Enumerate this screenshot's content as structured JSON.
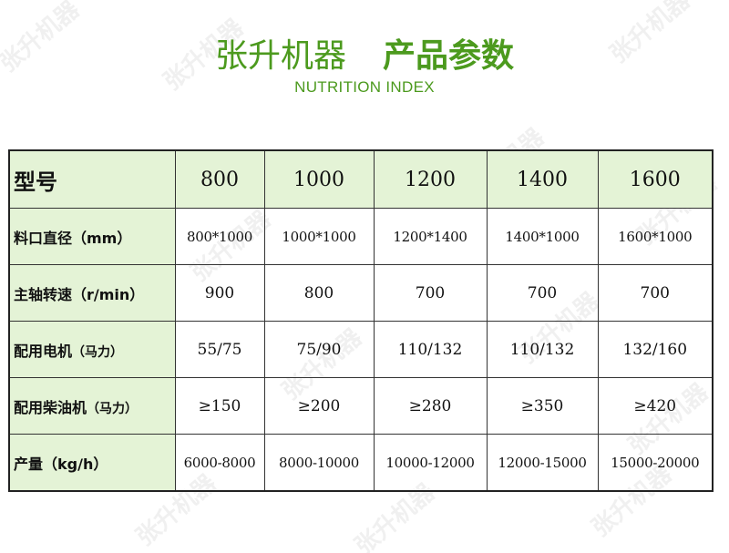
{
  "header": {
    "title_brand": "张升机器",
    "title_section": "产品参数",
    "subtitle": "NUTRITION INDEX"
  },
  "watermark": {
    "text": "张升机器"
  },
  "table": {
    "header_label": "型号",
    "models": [
      "800",
      "1000",
      "1200",
      "1400",
      "1600"
    ],
    "rows": [
      {
        "label": "料口直径（mm）",
        "values": [
          "800*1000",
          "1000*1000",
          "1200*1400",
          "1400*1000",
          "1600*1000"
        ]
      },
      {
        "label": "主轴转速（r/min）",
        "values": [
          "900",
          "800",
          "700",
          "700",
          "700"
        ]
      },
      {
        "label": "配用电机",
        "unit": "（马力）",
        "values": [
          "55/75",
          "75/90",
          "110/132",
          "110/132",
          "132/160"
        ]
      },
      {
        "label": "配用柴油机",
        "unit": "（马力）",
        "values": [
          "≥150",
          "≥200",
          "≥280",
          "≥350",
          "≥420"
        ]
      },
      {
        "label": "产量（kg/h）",
        "values": [
          "6000-8000",
          "8000-10000",
          "10000-12000",
          "12000-15000",
          "15000-20000"
        ]
      }
    ]
  },
  "colors": {
    "accent": "#4c9a1e",
    "cell_bg": "#e4f3d6"
  }
}
